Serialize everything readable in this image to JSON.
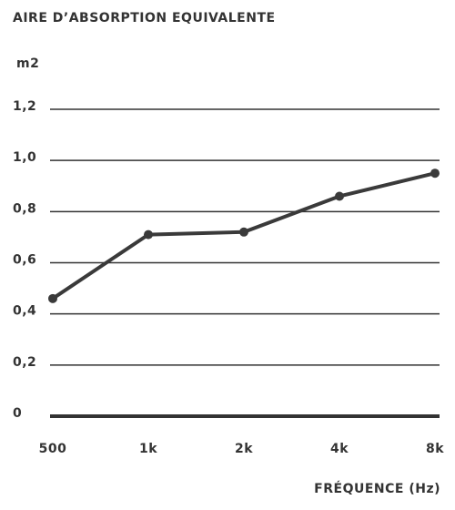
{
  "chart_data": {
    "type": "line",
    "title": "AIRE D’ABSORPTION EQUIVALENTE",
    "y_label": "m2",
    "x_label": "FRÉQUENCE (Hz)",
    "categories": [
      "500",
      "1k",
      "2k",
      "4k",
      "8k"
    ],
    "series": [
      {
        "name": "Aire d'absorption",
        "color": "#3a3a3a",
        "values": [
          0.46,
          0.71,
          0.72,
          0.86,
          0.95
        ]
      }
    ],
    "ylim": [
      0,
      1.2
    ],
    "yticks": [
      0,
      {
        "value": 0.2,
        "label": "0,2"
      },
      {
        "value": 0.4,
        "label": "0,4"
      },
      {
        "value": 0.6,
        "label": "0,6"
      },
      {
        "value": 0.8,
        "label": "0,8"
      },
      {
        "value": 1.0,
        "label": "1,0"
      },
      {
        "value": 1.2,
        "label": "1,2"
      }
    ],
    "grid": true
  }
}
